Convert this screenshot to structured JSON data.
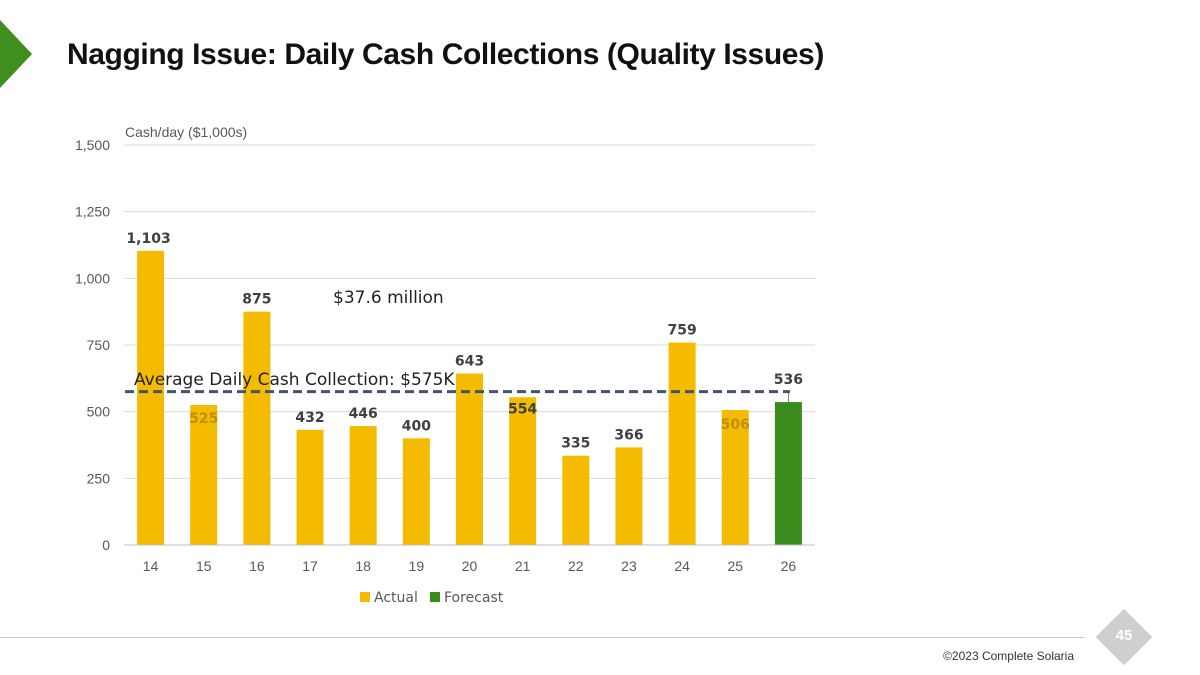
{
  "slide": {
    "title": "Nagging Issue: Daily Cash Collections (Quality Issues)",
    "page_number": "45",
    "copyright": "©2023 Complete Solaria"
  },
  "colors": {
    "actual": "#f5bb00",
    "forecast": "#3b8a1c",
    "average_line": "#44546a",
    "accent": "#3f8f1f"
  },
  "chart_data": {
    "type": "bar",
    "ylabel": "Cash/day ($1,000s)",
    "ylim": [
      0,
      1500
    ],
    "yticks": [
      0,
      250,
      500,
      750,
      1000,
      1250,
      1500
    ],
    "ytick_labels": [
      "0",
      "250",
      "500",
      "750",
      "1,000",
      "1,250",
      "1,500"
    ],
    "categories": [
      "14",
      "15",
      "16",
      "17",
      "18",
      "19",
      "20",
      "21",
      "22",
      "23",
      "24",
      "25",
      "26"
    ],
    "series": [
      {
        "name": "Actual",
        "values": [
          1103,
          525,
          875,
          432,
          446,
          400,
          643,
          554,
          335,
          366,
          759,
          506,
          null
        ]
      },
      {
        "name": "Forecast",
        "values": [
          null,
          null,
          null,
          null,
          null,
          null,
          null,
          null,
          null,
          null,
          null,
          null,
          536
        ]
      }
    ],
    "data_labels": [
      "1,103",
      "525",
      "875",
      "432",
      "446",
      "400",
      "643",
      "554",
      "335",
      "366",
      "759",
      "506",
      "536"
    ],
    "reference_line": {
      "value": 575,
      "label": "Average Daily Cash Collection: $575K",
      "style": "dashed"
    },
    "annotations": [
      {
        "text": "$37.6 million"
      }
    ],
    "grid": true,
    "legend_position": "bottom"
  }
}
